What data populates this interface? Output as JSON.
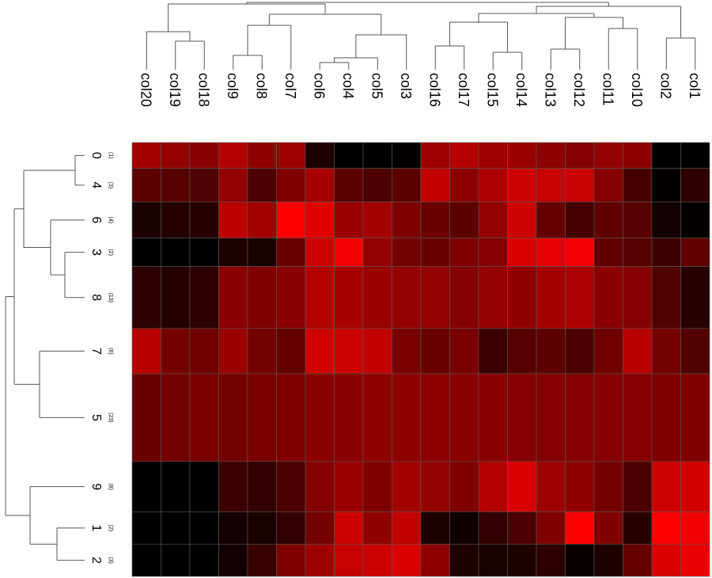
{
  "chart_data": {
    "type": "heatmap",
    "columns": [
      "col20",
      "col19",
      "col18",
      "col9",
      "col8",
      "col7",
      "col6",
      "col4",
      "col5",
      "col3",
      "col16",
      "col17",
      "col15",
      "col14",
      "col13",
      "col12",
      "col11",
      "col10",
      "col2",
      "col1"
    ],
    "rows": [
      {
        "label": "0",
        "count": "(1)"
      },
      {
        "label": "4",
        "count": "(3)"
      },
      {
        "label": "6",
        "count": "(4)"
      },
      {
        "label": "3",
        "count": "(2)"
      },
      {
        "label": "8",
        "count": "(13)"
      },
      {
        "label": "7",
        "count": "(6)"
      },
      {
        "label": "5",
        "count": "(23)"
      },
      {
        "label": "9",
        "count": "(8)"
      },
      {
        "label": "1",
        "count": "(2)"
      },
      {
        "label": "2",
        "count": "(3)"
      }
    ],
    "row_weights": [
      1,
      1.3,
      1.4,
      1.1,
      2.4,
      1.75,
      3.4,
      1.95,
      1.25,
      1.25
    ],
    "values": [
      [
        0.64,
        0.58,
        0.54,
        0.7,
        0.56,
        0.62,
        0.12,
        0.0,
        0.0,
        0.02,
        0.62,
        0.7,
        0.62,
        0.6,
        0.55,
        0.52,
        0.58,
        0.55,
        0.0,
        0.0
      ],
      [
        0.36,
        0.34,
        0.31,
        0.58,
        0.3,
        0.5,
        0.66,
        0.36,
        0.3,
        0.36,
        0.76,
        0.55,
        0.68,
        0.8,
        0.78,
        0.78,
        0.52,
        0.28,
        0.02,
        0.18
      ],
      [
        0.1,
        0.14,
        0.15,
        0.74,
        0.64,
        1.0,
        0.88,
        0.6,
        0.64,
        0.5,
        0.42,
        0.36,
        0.58,
        0.8,
        0.4,
        0.28,
        0.38,
        0.34,
        0.08,
        0.02
      ],
      [
        0.0,
        0.0,
        0.0,
        0.12,
        0.1,
        0.42,
        0.8,
        0.96,
        0.58,
        0.46,
        0.42,
        0.5,
        0.52,
        0.85,
        0.9,
        0.96,
        0.38,
        0.34,
        0.24,
        0.38
      ],
      [
        0.18,
        0.14,
        0.18,
        0.54,
        0.5,
        0.54,
        0.7,
        0.66,
        0.6,
        0.58,
        0.58,
        0.52,
        0.58,
        0.56,
        0.64,
        0.68,
        0.54,
        0.52,
        0.32,
        0.16
      ],
      [
        0.72,
        0.46,
        0.44,
        0.6,
        0.46,
        0.4,
        0.82,
        0.8,
        0.76,
        0.48,
        0.42,
        0.48,
        0.24,
        0.34,
        0.36,
        0.3,
        0.44,
        0.72,
        0.46,
        0.32
      ],
      [
        0.42,
        0.46,
        0.48,
        0.46,
        0.48,
        0.5,
        0.54,
        0.54,
        0.56,
        0.56,
        0.56,
        0.54,
        0.54,
        0.52,
        0.52,
        0.52,
        0.52,
        0.52,
        0.5,
        0.5
      ],
      [
        0.0,
        0.0,
        0.0,
        0.24,
        0.2,
        0.3,
        0.52,
        0.6,
        0.5,
        0.64,
        0.58,
        0.5,
        0.7,
        0.86,
        0.62,
        0.56,
        0.46,
        0.3,
        0.8,
        0.82
      ],
      [
        0.0,
        0.0,
        0.0,
        0.08,
        0.1,
        0.2,
        0.46,
        0.8,
        0.56,
        0.76,
        0.12,
        0.06,
        0.2,
        0.3,
        0.5,
        1.0,
        0.5,
        0.16,
        1.0,
        0.94
      ],
      [
        0.0,
        0.0,
        0.0,
        0.08,
        0.22,
        0.5,
        0.62,
        0.78,
        0.8,
        0.86,
        0.56,
        0.12,
        0.1,
        0.12,
        0.18,
        0.04,
        0.12,
        0.4,
        0.86,
        0.92
      ]
    ]
  }
}
